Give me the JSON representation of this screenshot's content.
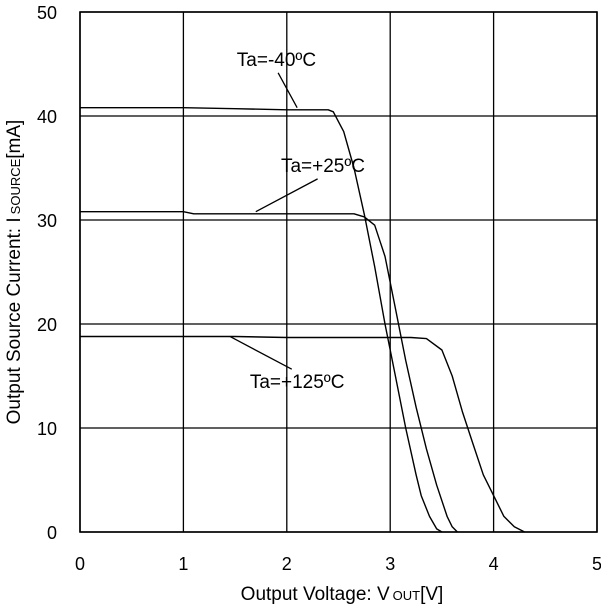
{
  "chart_data": {
    "type": "line",
    "title": "",
    "xlabel": {
      "main": "Output Voltage: V",
      "sub": "OUT",
      "unit": "[V]"
    },
    "ylabel": {
      "main": "Output Source Current: I",
      "sub": "SOURCE",
      "unit": "[mA]"
    },
    "xlim": [
      0,
      5
    ],
    "ylim": [
      0,
      50
    ],
    "xticks": [
      "0",
      "1",
      "2",
      "3",
      "4",
      "5"
    ],
    "yticks": [
      "0",
      "10",
      "20",
      "30",
      "40",
      "50"
    ],
    "grid": true,
    "legend": "none",
    "line_color": "#000000",
    "series": [
      {
        "label": "Ta=-40ºC",
        "x": [
          0,
          1.0,
          1.5,
          2.0,
          2.4,
          2.45,
          2.55,
          2.65,
          2.75,
          2.85,
          2.95,
          3.05,
          3.15,
          3.25,
          3.3,
          3.38,
          3.45,
          3.5
        ],
        "y": [
          40.8,
          40.8,
          40.7,
          40.6,
          40.6,
          40.4,
          38.5,
          35.0,
          30.5,
          25.5,
          20.0,
          15.0,
          10.0,
          5.5,
          3.5,
          1.5,
          0.3,
          0
        ]
      },
      {
        "label": "Ta=+25ºC",
        "x": [
          0,
          1.0,
          1.1,
          2.0,
          2.65,
          2.75,
          2.85,
          2.95,
          3.05,
          3.15,
          3.25,
          3.35,
          3.45,
          3.55,
          3.6,
          3.65
        ],
        "y": [
          30.8,
          30.8,
          30.6,
          30.6,
          30.6,
          30.3,
          29.5,
          26.5,
          21.5,
          16.5,
          12.0,
          8.0,
          4.5,
          1.5,
          0.5,
          0
        ]
      },
      {
        "label": "Ta=+125ºC",
        "x": [
          0,
          1.5,
          2.0,
          3.2,
          3.35,
          3.5,
          3.6,
          3.7,
          3.8,
          3.9,
          4.0,
          4.1,
          4.2,
          4.3
        ],
        "y": [
          18.8,
          18.8,
          18.7,
          18.7,
          18.6,
          17.5,
          15.0,
          11.5,
          8.5,
          5.5,
          3.5,
          1.5,
          0.5,
          0
        ]
      }
    ],
    "annotations": [
      {
        "text": "Ta=-40ºC",
        "series": 0,
        "x": 1.9,
        "y": 45.5,
        "point_x": 2.1,
        "point_y": 40.8
      },
      {
        "text": "Ta=+25ºC",
        "series": 1,
        "x": 2.35,
        "y": 35.3,
        "point_x": 1.7,
        "point_y": 30.8
      },
      {
        "text": "Ta=+125ºC",
        "series": 2,
        "x": 2.1,
        "y": 14.5,
        "point_x": 1.45,
        "point_y": 18.8
      }
    ]
  }
}
